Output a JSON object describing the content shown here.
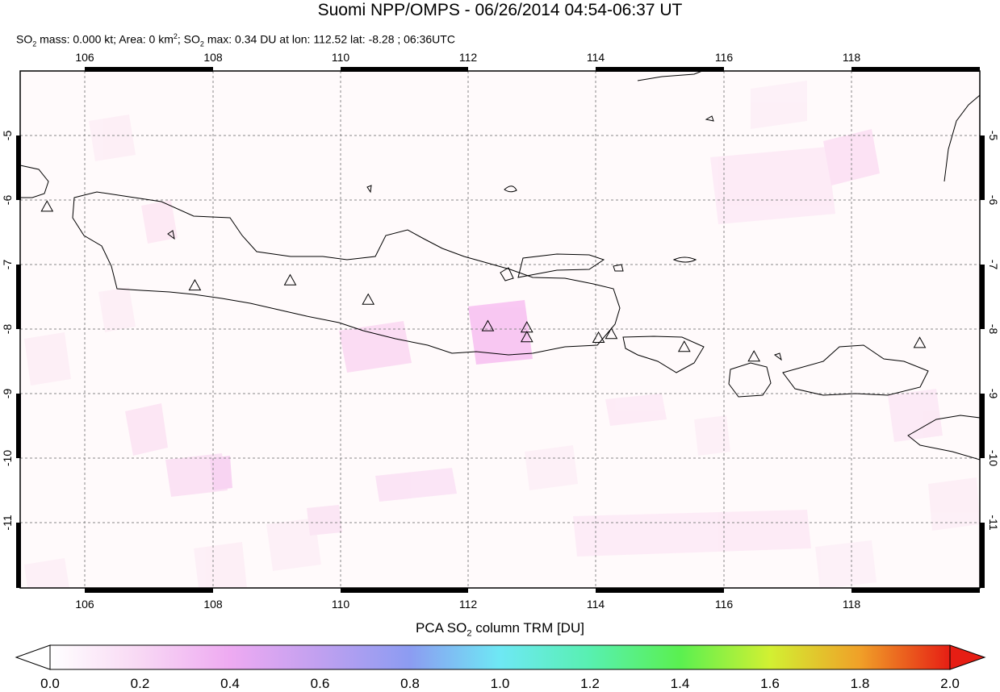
{
  "header": {
    "title": "Suomi NPP/OMPS - 06/26/2014 04:54-06:37 UT",
    "subtitle_parts": {
      "p1": "SO",
      "s1": "2",
      "p2": " mass: 0.000 kt; Area: 0 km",
      "s2": "2",
      "p3": "; SO",
      "s3": "2",
      "p4": " max: 0.34 DU at lon: 112.52 lat: -8.28 ; 06:36UTC"
    }
  },
  "map": {
    "lon_range": [
      105,
      120
    ],
    "lat_range": [
      -12,
      -4
    ],
    "lon_ticks": [
      "106",
      "108",
      "110",
      "112",
      "114",
      "116",
      "118"
    ],
    "lat_ticks": [
      "-5",
      "-6",
      "-7",
      "-8",
      "-9",
      "-10",
      "-11"
    ],
    "volcanoes": [
      {
        "lon": 105.42,
        "lat": -6.1
      },
      {
        "lon": 107.73,
        "lat": -7.32
      },
      {
        "lon": 109.22,
        "lat": -7.24
      },
      {
        "lon": 110.44,
        "lat": -7.54
      },
      {
        "lon": 112.31,
        "lat": -7.95
      },
      {
        "lon": 112.92,
        "lat": -7.97
      },
      {
        "lon": 112.92,
        "lat": -8.12
      },
      {
        "lon": 114.04,
        "lat": -8.13
      },
      {
        "lon": 114.24,
        "lat": -8.07
      },
      {
        "lon": 115.38,
        "lat": -8.27
      },
      {
        "lon": 116.47,
        "lat": -8.42
      },
      {
        "lon": 119.06,
        "lat": -8.21
      }
    ]
  },
  "colorbar": {
    "title": "PCA SO",
    "title_sub": "2",
    "title_rest": " column TRM [DU]",
    "labels": [
      "0.0",
      "0.2",
      "0.4",
      "0.6",
      "0.8",
      "1.0",
      "1.2",
      "1.4",
      "1.6",
      "1.8",
      "2.0"
    ],
    "stops": [
      "#ffffff",
      "#f5c8f0",
      "#c89cf0",
      "#8c96f0",
      "#78c8f5",
      "#64f0f0",
      "#50f0a0",
      "#50f050",
      "#c8f032",
      "#f0c832",
      "#f07828",
      "#e61e14"
    ]
  }
}
